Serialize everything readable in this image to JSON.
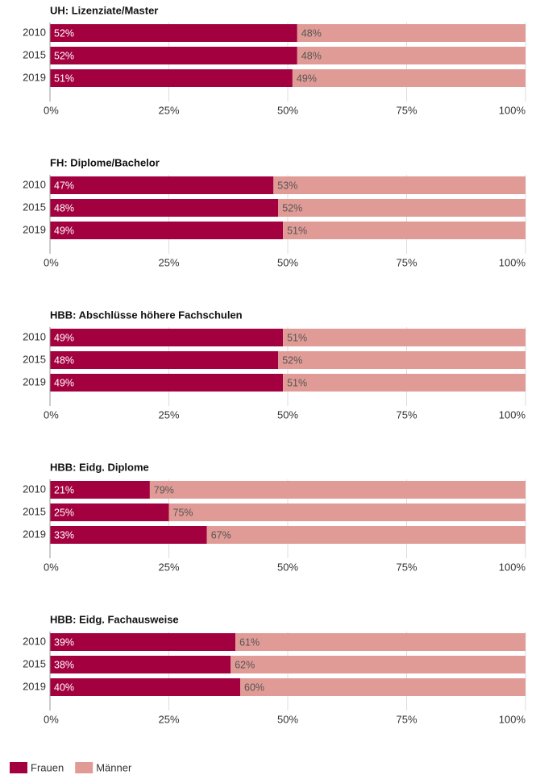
{
  "legend": [
    {
      "name": "Frauen",
      "color": "#a3003f"
    },
    {
      "name": "Männer",
      "color": "#e09b96"
    }
  ],
  "chart_data": [
    {
      "type": "bar",
      "title": "UH: Lizenziate/Master",
      "categories": [
        "2010",
        "2015",
        "2019"
      ],
      "series": [
        {
          "values": [
            52,
            52,
            51
          ],
          "value_labels": [
            "52%",
            "52%",
            "51%"
          ]
        },
        {
          "values": [
            48,
            48,
            49
          ],
          "value_labels": [
            "48%",
            "48%",
            "49%"
          ]
        }
      ],
      "xlim": [
        0,
        100
      ],
      "xticks": [
        {
          "value": 0,
          "label": "0%"
        },
        {
          "value": 25,
          "label": "25%"
        },
        {
          "value": 50,
          "label": "50%"
        },
        {
          "value": 75,
          "label": "75%"
        },
        {
          "value": 100,
          "label": "100%"
        }
      ],
      "grid": true
    },
    {
      "type": "bar",
      "title": "FH: Diplome/Bachelor",
      "categories": [
        "2010",
        "2015",
        "2019"
      ],
      "series": [
        {
          "values": [
            47,
            48,
            49
          ],
          "value_labels": [
            "47%",
            "48%",
            "49%"
          ]
        },
        {
          "values": [
            53,
            52,
            51
          ],
          "value_labels": [
            "53%",
            "52%",
            "51%"
          ]
        }
      ],
      "xlim": [
        0,
        100
      ],
      "xticks": [
        {
          "value": 0,
          "label": "0%"
        },
        {
          "value": 25,
          "label": "25%"
        },
        {
          "value": 50,
          "label": "50%"
        },
        {
          "value": 75,
          "label": "75%"
        },
        {
          "value": 100,
          "label": "100%"
        }
      ],
      "grid": true
    },
    {
      "type": "bar",
      "title": "HBB: Abschlüsse höhere Fachschulen",
      "categories": [
        "2010",
        "2015",
        "2019"
      ],
      "series": [
        {
          "values": [
            49,
            48,
            49
          ],
          "value_labels": [
            "49%",
            "48%",
            "49%"
          ]
        },
        {
          "values": [
            51,
            52,
            51
          ],
          "value_labels": [
            "51%",
            "52%",
            "51%"
          ]
        }
      ],
      "xlim": [
        0,
        100
      ],
      "xticks": [
        {
          "value": 0,
          "label": "0%"
        },
        {
          "value": 25,
          "label": "25%"
        },
        {
          "value": 50,
          "label": "50%"
        },
        {
          "value": 75,
          "label": "75%"
        },
        {
          "value": 100,
          "label": "100%"
        }
      ],
      "grid": true
    },
    {
      "type": "bar",
      "title": "HBB: Eidg. Diplome",
      "categories": [
        "2010",
        "2015",
        "2019"
      ],
      "series": [
        {
          "values": [
            21,
            25,
            33
          ],
          "value_labels": [
            "21%",
            "25%",
            "33%"
          ]
        },
        {
          "values": [
            79,
            75,
            67
          ],
          "value_labels": [
            "79%",
            "75%",
            "67%"
          ]
        }
      ],
      "xlim": [
        0,
        100
      ],
      "xticks": [
        {
          "value": 0,
          "label": "0%"
        },
        {
          "value": 25,
          "label": "25%"
        },
        {
          "value": 50,
          "label": "50%"
        },
        {
          "value": 75,
          "label": "75%"
        },
        {
          "value": 100,
          "label": "100%"
        }
      ],
      "grid": true
    },
    {
      "type": "bar",
      "title": "HBB: Eidg. Fachausweise",
      "categories": [
        "2010",
        "2015",
        "2019"
      ],
      "series": [
        {
          "values": [
            39,
            38,
            40
          ],
          "value_labels": [
            "39%",
            "38%",
            "40%"
          ]
        },
        {
          "values": [
            61,
            62,
            60
          ],
          "value_labels": [
            "61%",
            "62%",
            "60%"
          ]
        }
      ],
      "xlim": [
        0,
        100
      ],
      "xticks": [
        {
          "value": 0,
          "label": "0%"
        },
        {
          "value": 25,
          "label": "25%"
        },
        {
          "value": 50,
          "label": "50%"
        },
        {
          "value": 75,
          "label": "75%"
        },
        {
          "value": 100,
          "label": "100%"
        }
      ],
      "grid": true
    }
  ]
}
